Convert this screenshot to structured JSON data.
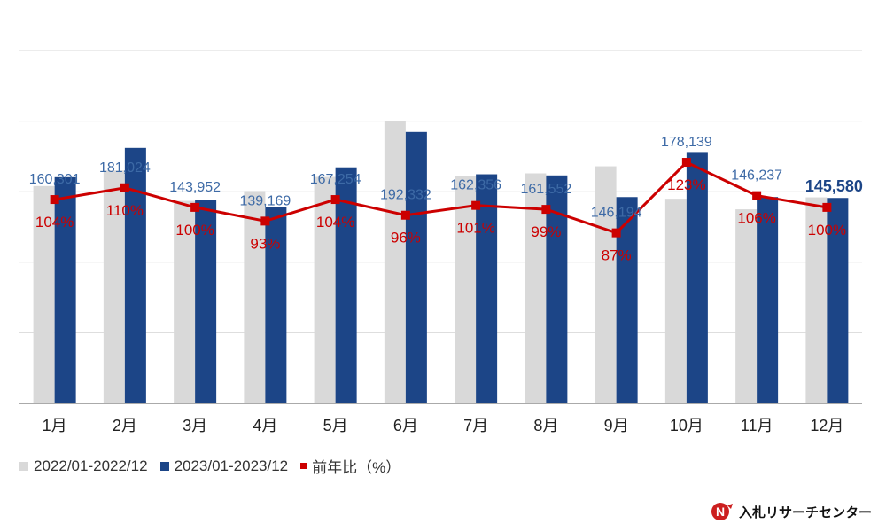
{
  "chart_data": {
    "type": "bar",
    "categories": [
      "1月",
      "2月",
      "3月",
      "4月",
      "5月",
      "6月",
      "7月",
      "8月",
      "9月",
      "10月",
      "11月",
      "12月"
    ],
    "ylim": [
      0,
      250000
    ],
    "series": [
      {
        "name": "2022/01-2022/12",
        "color": "#d9d9d9",
        "values": [
          154000,
          165000,
          143500,
          150500,
          160500,
          200000,
          161000,
          163000,
          168000,
          145000,
          137500,
          146000
        ]
      },
      {
        "name": "2023/01-2023/12",
        "color": "#1c4587",
        "values": [
          160301,
          181024,
          143952,
          139169,
          167254,
          192332,
          162356,
          161552,
          146194,
          178139,
          146237,
          145580
        ]
      }
    ],
    "line": {
      "name": "前年比（%）",
      "color": "#cc0000",
      "ylim": [
        0,
        180
      ],
      "values": [
        104,
        110,
        100,
        93,
        104,
        96,
        101,
        99,
        87,
        123,
        106,
        100
      ],
      "labels": [
        "104%",
        "110%",
        "100%",
        "93%",
        "104%",
        "96%",
        "101%",
        "99%",
        "87%",
        "123%",
        "106%",
        "100%"
      ]
    },
    "value_labels": [
      "160,301",
      "181,024",
      "143,952",
      "139,169",
      "167,254",
      "192,332",
      "162,356",
      "161,552",
      "146,194",
      "178,139",
      "146,237",
      "145,580"
    ],
    "label_color": "#3d6aa6"
  },
  "legend": {
    "items": [
      {
        "label": "2022/01-2022/12",
        "color": "#d9d9d9"
      },
      {
        "label": "2023/01-2023/12",
        "color": "#1c4587"
      },
      {
        "label": "前年比（%）",
        "color": "#cc0000"
      }
    ]
  },
  "logo": {
    "text": "入札リサーチセンター",
    "mark": "N"
  }
}
